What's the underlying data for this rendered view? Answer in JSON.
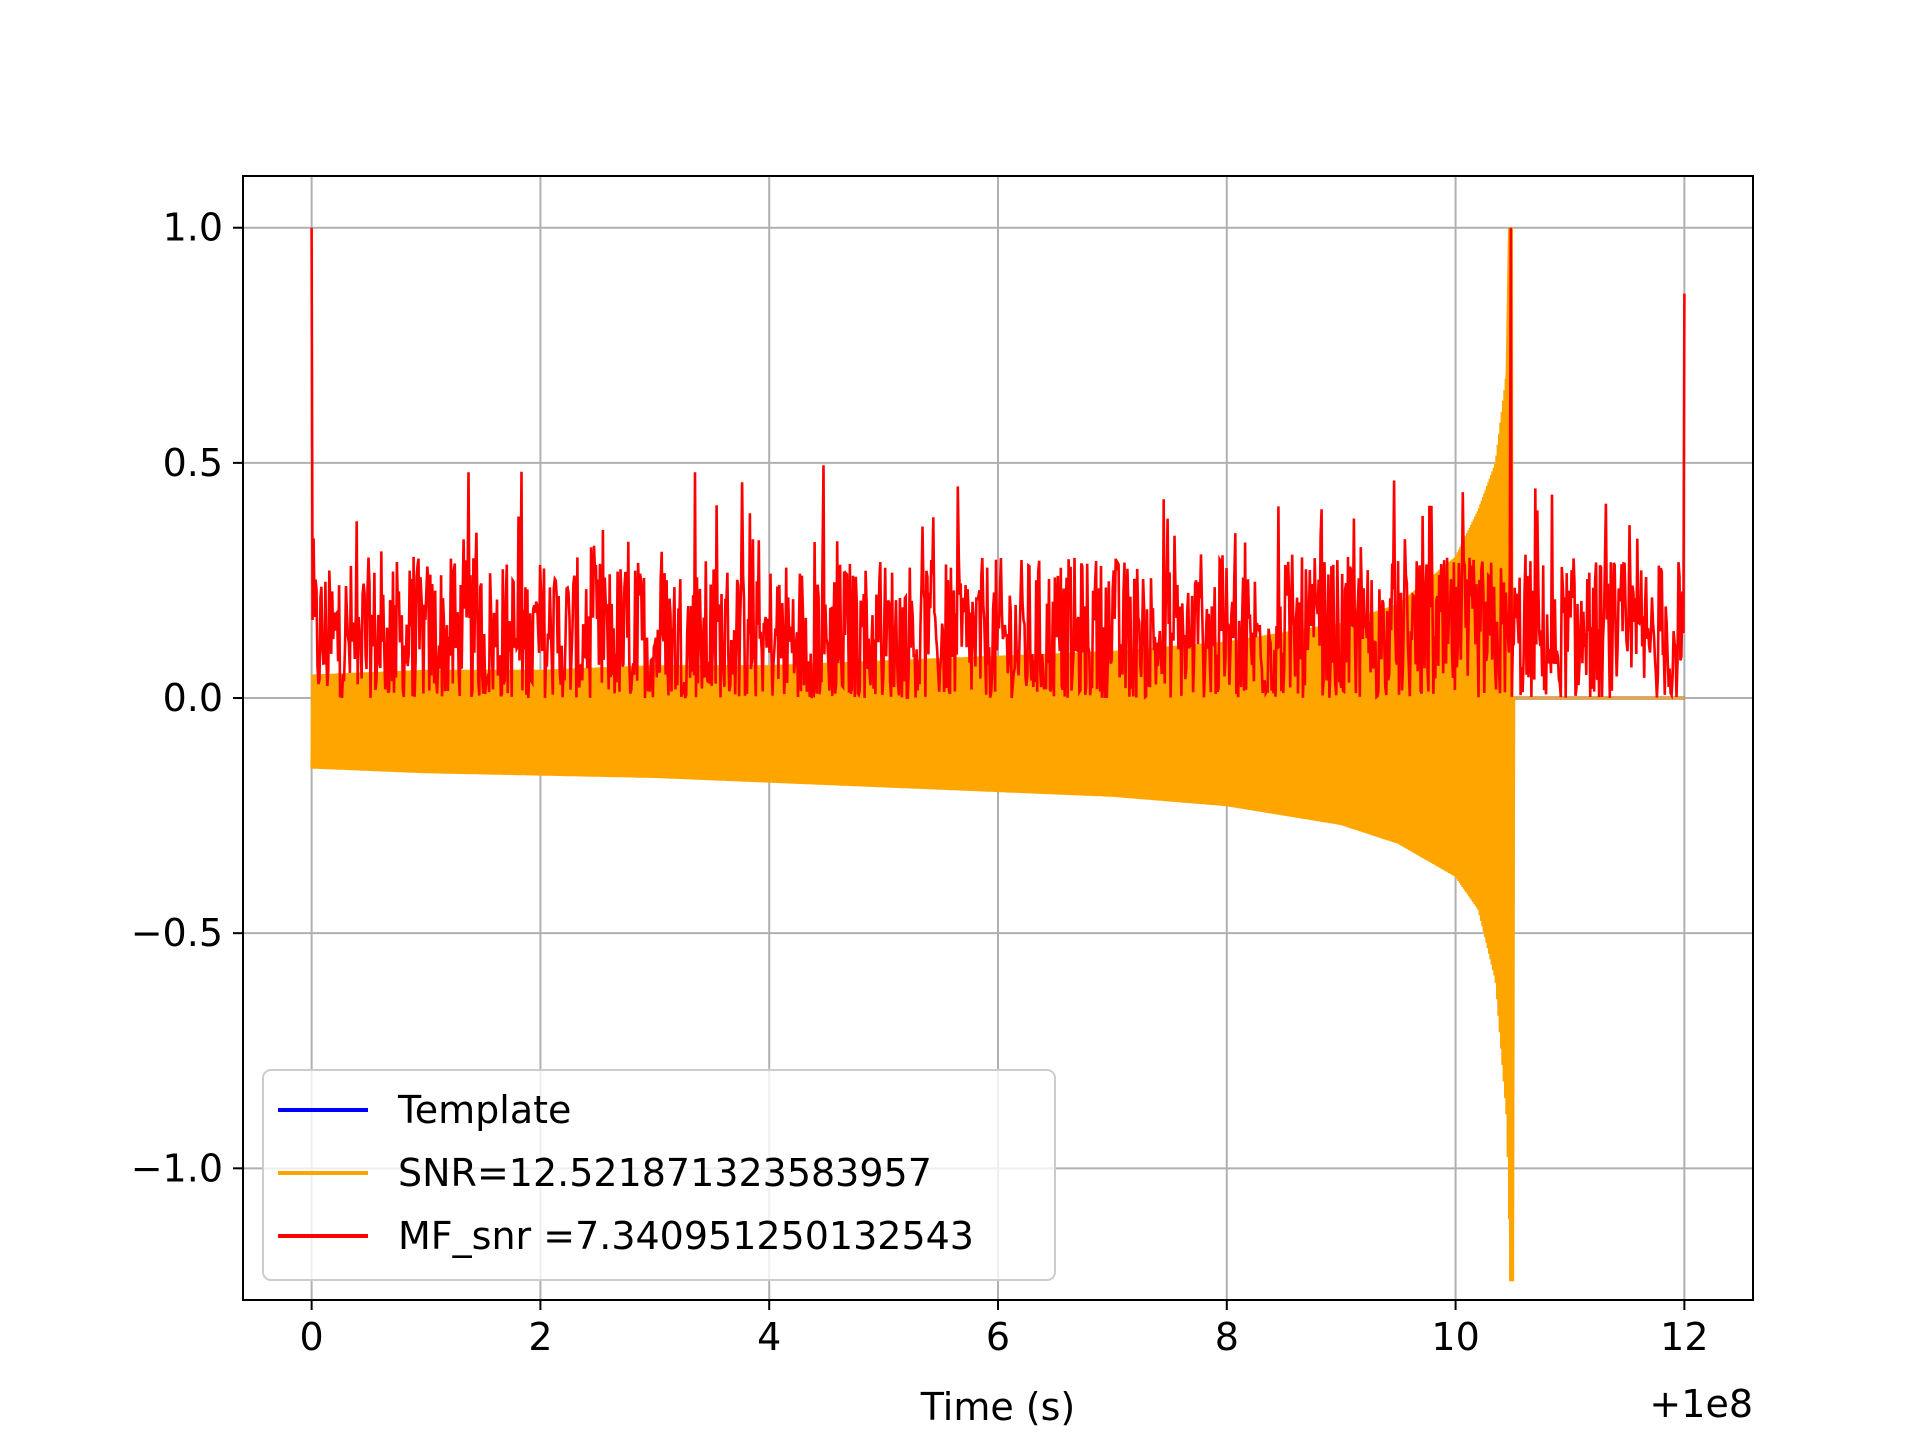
{
  "chart_data": {
    "type": "line",
    "title": "",
    "xlabel": "Time (s)",
    "ylabel": "",
    "x_offset_label": "+1e8",
    "xlim": [
      -0.6,
      12.6
    ],
    "ylim": [
      -1.28,
      1.11
    ],
    "xticks": [
      0,
      2,
      4,
      6,
      8,
      10,
      12
    ],
    "xtick_labels": [
      "0",
      "2",
      "4",
      "6",
      "8",
      "10",
      "12"
    ],
    "yticks": [
      1.0,
      0.5,
      0.0,
      -0.5,
      -1.0
    ],
    "ytick_labels": [
      "1.0",
      "0.5",
      "0.0",
      "−0.5",
      "−1.0"
    ],
    "grid": true,
    "legend_position": "lower-left",
    "series": [
      {
        "name": "Template",
        "color": "#0000ff",
        "x": [
          0,
          12
        ],
        "y": [
          0.0,
          0.0
        ]
      },
      {
        "name": "SNR=12.521871323583957",
        "color": "#ffa500",
        "description_envelope": "chirp oscillation: lower envelope ~-0.15 at t=0 deepening to -1.24 at t=10.48, upper envelope ~0.06 rising to 1.0 at t=10.48, then ~0 until t=12",
        "x": [
          0,
          1,
          2,
          3,
          4,
          5,
          6,
          7,
          8,
          9,
          9.5,
          10,
          10.2,
          10.35,
          10.45,
          10.48,
          10.5,
          11,
          12
        ],
        "y_lower": [
          -0.15,
          -0.16,
          -0.165,
          -0.17,
          -0.18,
          -0.19,
          -0.2,
          -0.21,
          -0.23,
          -0.27,
          -0.31,
          -0.38,
          -0.45,
          -0.6,
          -0.9,
          -1.24,
          0.0,
          0.0,
          0.0
        ],
        "y_upper": [
          0.05,
          0.06,
          0.06,
          0.07,
          0.07,
          0.08,
          0.09,
          0.1,
          0.12,
          0.16,
          0.2,
          0.3,
          0.4,
          0.5,
          0.7,
          1.0,
          0.0,
          0.0,
          0.0
        ]
      },
      {
        "name": "MF_snr =7.340951250132543",
        "color": "#ff0000",
        "description_envelope": "noisy matched-filter output fluctuating between ~0.0 and ~0.48 with peaks 1.0 at t=0 and 0.86 at t=12",
        "peaks": [
          {
            "x": 0.0,
            "y": 1.0
          },
          {
            "x": 1.37,
            "y": 0.48
          },
          {
            "x": 3.35,
            "y": 0.48
          },
          {
            "x": 5.65,
            "y": 0.45
          },
          {
            "x": 10.48,
            "y": 1.0
          },
          {
            "x": 12.0,
            "y": 0.86
          }
        ],
        "band_low": 0.0,
        "band_high": 0.3
      }
    ]
  }
}
